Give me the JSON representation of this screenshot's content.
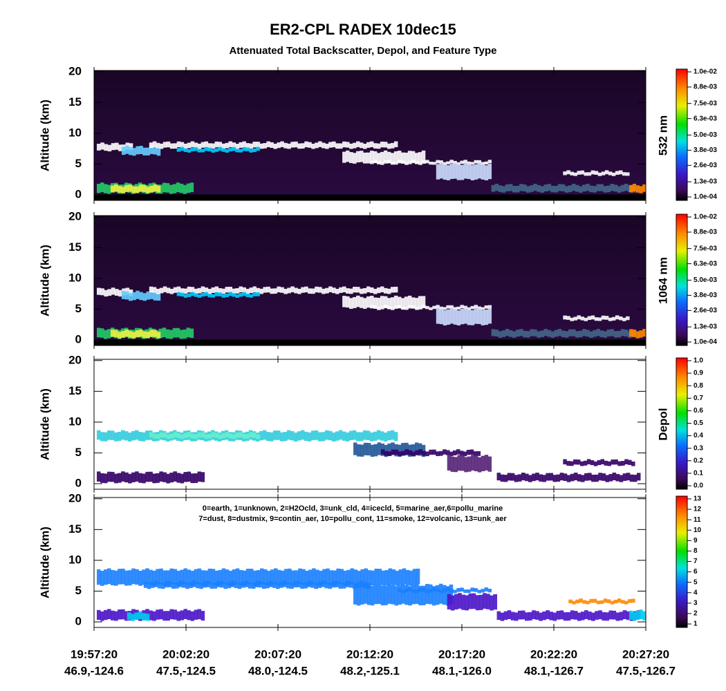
{
  "title": "ER2-CPL RADEX 10dec15",
  "subtitle": "Attenuated Total Backscatter, Depol, and Feature Type",
  "x_axis": [
    {
      "time": "19:57:20",
      "location": "46.9,-124.6"
    },
    {
      "time": "20:02:20",
      "location": "47.5,-124.5"
    },
    {
      "time": "20:07:20",
      "location": "48.0,-124.5"
    },
    {
      "time": "20:12:20",
      "location": "48.2,-125.1"
    },
    {
      "time": "20:17:20",
      "location": "48.1,-126.0"
    },
    {
      "time": "20:22:20",
      "location": "48.1,-126.7"
    },
    {
      "time": "20:27:20",
      "location": "47.5,-126.7"
    }
  ],
  "chart_data": [
    {
      "type": "curtain",
      "kind": "backscatter",
      "ylabel": "Altitude (km)",
      "ylim": [
        -0.9,
        20.2
      ],
      "yticks": [
        0,
        5,
        10,
        15,
        20
      ],
      "colorbar": {
        "label": "532 nm",
        "clim": [
          0.0001,
          0.01
        ],
        "ticks": [
          {
            "value": 0.0001,
            "label": "1.0e-04"
          },
          {
            "value": 0.0013,
            "label": "1.3e-03"
          },
          {
            "value": 0.0026,
            "label": "2.6e-03"
          },
          {
            "value": 0.0038,
            "label": "3.8e-03"
          },
          {
            "value": 0.005,
            "label": "5.0e-03"
          },
          {
            "value": 0.0063,
            "label": "6.3e-03"
          },
          {
            "value": 0.0075,
            "label": "7.5e-03"
          },
          {
            "value": 0.0088,
            "label": "8.8e-03"
          },
          {
            "value": 0.01,
            "label": "1.0e-02"
          }
        ]
      }
    },
    {
      "type": "curtain",
      "kind": "backscatter",
      "ylabel": "Altitude (km)",
      "ylim": [
        -0.9,
        20.2
      ],
      "yticks": [
        0,
        5,
        10,
        15,
        20
      ],
      "colorbar": {
        "label": "1064 nm",
        "clim": [
          0.0001,
          0.01
        ],
        "ticks": [
          {
            "value": 0.0001,
            "label": "1.0e-04"
          },
          {
            "value": 0.0013,
            "label": "1.3e-03"
          },
          {
            "value": 0.0026,
            "label": "2.6e-03"
          },
          {
            "value": 0.0038,
            "label": "3.8e-03"
          },
          {
            "value": 0.005,
            "label": "5.0e-03"
          },
          {
            "value": 0.0063,
            "label": "6.3e-03"
          },
          {
            "value": 0.0075,
            "label": "7.5e-03"
          },
          {
            "value": 0.0088,
            "label": "8.8e-03"
          },
          {
            "value": 0.01,
            "label": "1.0e-02"
          }
        ]
      }
    },
    {
      "type": "curtain",
      "kind": "depol",
      "ylabel": "Altitude (km)",
      "ylim": [
        -0.9,
        20.2
      ],
      "yticks": [
        0,
        5,
        10,
        15,
        20
      ],
      "colorbar": {
        "label": "Depol",
        "clim": [
          0,
          1
        ],
        "ticks": [
          {
            "value": 0,
            "label": "0.0"
          },
          0.1,
          0.2,
          0.3,
          0.4,
          0.5,
          0.6,
          0.7,
          0.8,
          0.9,
          {
            "value": 1,
            "label": "1.0"
          }
        ]
      }
    },
    {
      "type": "curtain",
      "kind": "feature",
      "ylabel": "Altitude (km)",
      "ylim": [
        -0.9,
        20.2
      ],
      "yticks": [
        0,
        5,
        10,
        15,
        20
      ],
      "annotation": [
        "0=earth, 1=unknown, 2=H2Ocld, 3=unk_cld, 4=icecld, 5=marine_aer,6=pollu_marine",
        "7=dust, 8=dustmix, 9=contin_aer, 10=pollu_cont, 11=smoke, 12=volcanic, 13=unk_aer"
      ],
      "colorbar": {
        "clim": [
          1,
          13
        ],
        "ticks": [
          1,
          2,
          3,
          4,
          5,
          6,
          7,
          8,
          9,
          10,
          11,
          12,
          13
        ]
      }
    }
  ]
}
